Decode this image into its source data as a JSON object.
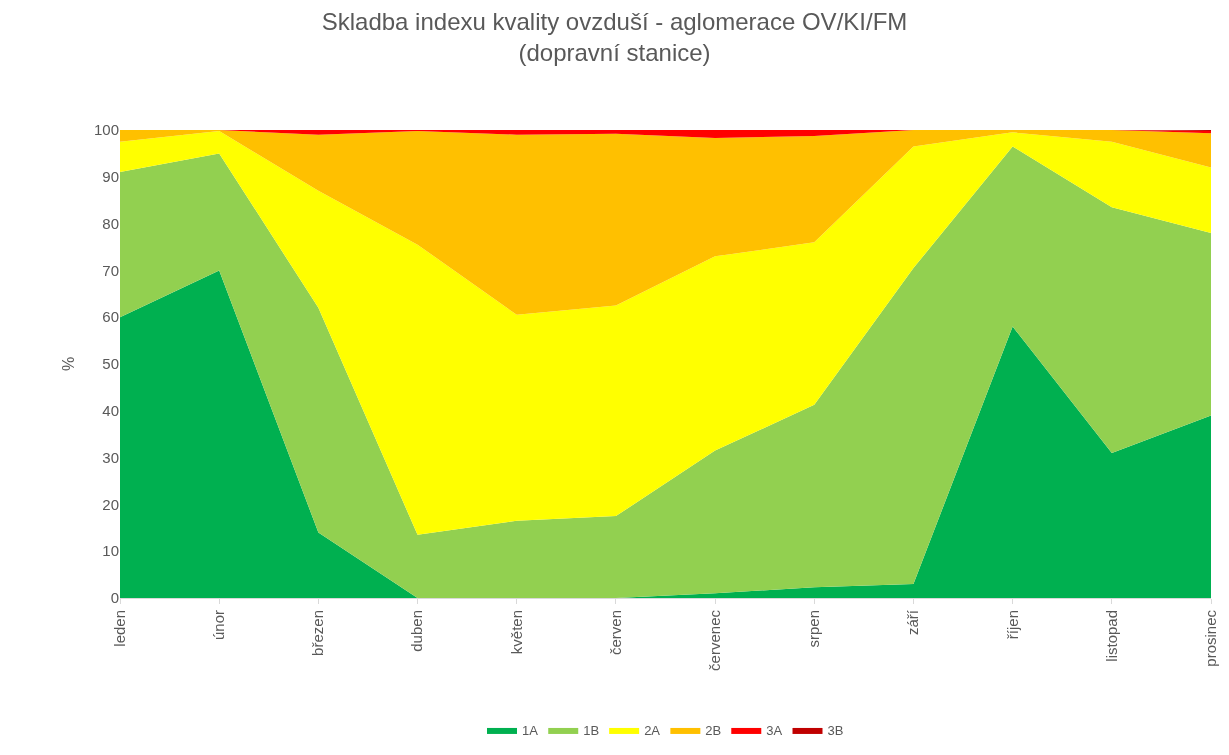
{
  "chart_data": {
    "type": "area",
    "title": "Skladba indexu kvality ovzduší - aglomerace OV/KI/FM",
    "subtitle": "(dopravní stanice)",
    "ylabel": "%",
    "stacked": true,
    "categories": [
      "leden",
      "únor",
      "březen",
      "duben",
      "květen",
      "červen",
      "červenec",
      "srpen",
      "září",
      "říjen",
      "listopad",
      "prosinec"
    ],
    "series": [
      {
        "name": "1A",
        "color": "#00b050",
        "values": [
          60,
          70,
          14,
          0,
          0,
          0,
          1,
          2.3,
          3,
          58,
          31,
          39
        ]
      },
      {
        "name": "1B",
        "color": "#92d050",
        "values": [
          31,
          25,
          48,
          13.5,
          16.5,
          17.5,
          30.5,
          39,
          67.5,
          38.5,
          52.5,
          39
        ]
      },
      {
        "name": "2A",
        "color": "#ffff00",
        "values": [
          6.5,
          4.8,
          25,
          62,
          44,
          45,
          41.5,
          34.7,
          26,
          3,
          14,
          14
        ]
      },
      {
        "name": "2B",
        "color": "#ffc000",
        "values": [
          2.5,
          0.2,
          12,
          24.3,
          38.5,
          36.7,
          25.3,
          22.7,
          3.5,
          0.5,
          2.5,
          7.3
        ]
      },
      {
        "name": "3A",
        "color": "#ff0000",
        "values": [
          0,
          0,
          1,
          0.2,
          1,
          0.8,
          1.7,
          1.3,
          0,
          0,
          0,
          0.5
        ]
      },
      {
        "name": "3B",
        "color": "#c00000",
        "values": [
          0,
          0,
          0,
          0,
          0,
          0,
          0,
          0,
          0,
          0,
          0,
          0.2
        ]
      }
    ],
    "ylim": [
      0,
      100
    ],
    "yticks": [
      0,
      10,
      20,
      30,
      40,
      50,
      60,
      70,
      80,
      90,
      100
    ],
    "legend": "bottom"
  }
}
